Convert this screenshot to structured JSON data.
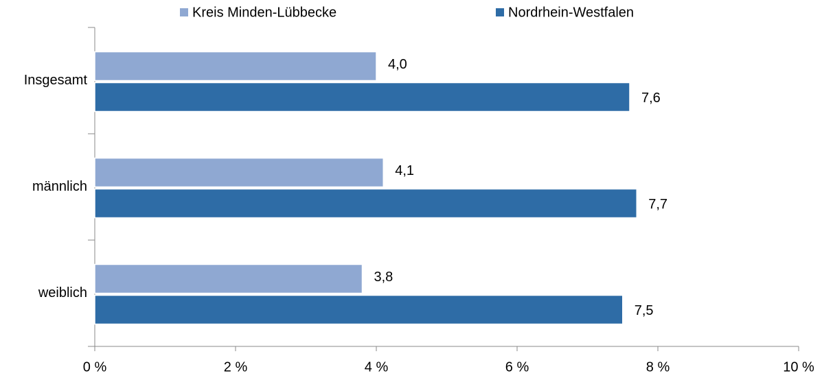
{
  "chart_data": {
    "type": "bar",
    "orientation": "horizontal",
    "categories": [
      "Insgesamt",
      "männlich",
      "weiblich"
    ],
    "series": [
      {
        "name": "Kreis Minden-Lübbecke",
        "color": "#8fa8d2",
        "values": [
          4.0,
          4.1,
          3.8
        ],
        "value_labels": [
          "4,0",
          "4,1",
          "3,8"
        ]
      },
      {
        "name": "Nordrhein-Westfalen",
        "color": "#2e6ca6",
        "values": [
          7.6,
          7.7,
          7.5
        ],
        "value_labels": [
          "7,6",
          "7,7",
          "7,5"
        ]
      }
    ],
    "xlim": [
      0,
      10
    ],
    "xticks": [
      {
        "value": 0,
        "label": "0 %"
      },
      {
        "value": 2,
        "label": "2 %"
      },
      {
        "value": 4,
        "label": "4 %"
      },
      {
        "value": 6,
        "label": "6 %"
      },
      {
        "value": 8,
        "label": "8 %"
      },
      {
        "value": 10,
        "label": "10 %"
      }
    ],
    "legend": "top",
    "grid": false
  }
}
